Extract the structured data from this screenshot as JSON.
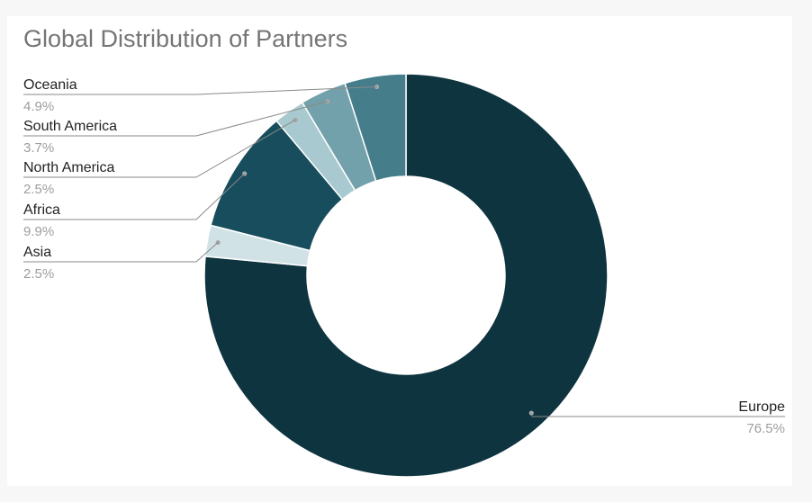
{
  "chart_data": {
    "type": "pie",
    "style": "donut",
    "title": "Global Distribution of Partners",
    "slices": [
      {
        "label": "Europe",
        "value": 76.5,
        "value_label": "76.5%",
        "color": "#0e3440",
        "label_side": "right"
      },
      {
        "label": "Asia",
        "value": 2.5,
        "value_label": "2.5%",
        "color": "#d1e2e6",
        "label_side": "left"
      },
      {
        "label": "Africa",
        "value": 9.9,
        "value_label": "9.9%",
        "color": "#174d5c",
        "label_side": "left"
      },
      {
        "label": "North America",
        "value": 2.5,
        "value_label": "2.5%",
        "color": "#a8c9cf",
        "label_side": "left"
      },
      {
        "label": "South America",
        "value": 3.7,
        "value_label": "3.7%",
        "color": "#73a1ab",
        "label_side": "left"
      },
      {
        "label": "Oceania",
        "value": 4.9,
        "value_label": "4.9%",
        "color": "#457d8b",
        "label_side": "left"
      }
    ],
    "legend": "none"
  }
}
